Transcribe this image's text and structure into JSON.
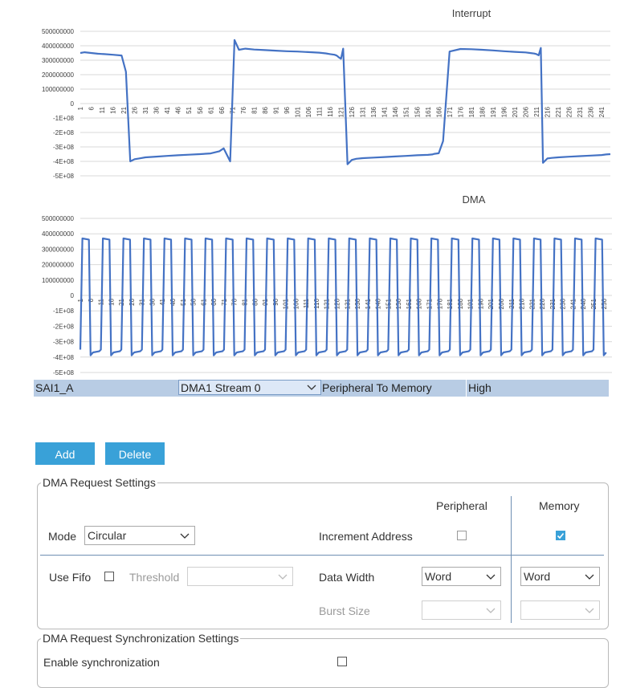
{
  "charts": {
    "interrupt": {
      "title": "Interrupt"
    },
    "dma": {
      "title": "DMA"
    }
  },
  "chart_data": [
    {
      "type": "line",
      "title": "Interrupt",
      "x_start": 1,
      "x_end": 245,
      "x_tick_step": 5,
      "y_ticks": [
        500000000,
        400000000,
        300000000,
        200000000,
        100000000,
        0,
        -100000000,
        -200000000,
        -300000000,
        -400000000,
        -500000000
      ],
      "y_tick_labels": [
        "500000000",
        "400000000",
        "300000000",
        "200000000",
        "100000000",
        "0",
        "-1E+08",
        "-2E+08",
        "-3E+08",
        "-4E+08",
        "-5E+08"
      ],
      "ylim": [
        -500000000,
        500000000
      ],
      "grid": true,
      "series": [
        {
          "values": [
            350000000,
            355000000,
            350000000,
            345000000,
            342000000,
            338000000,
            333000000,
            220000000,
            -400000000,
            -385000000,
            -380000000,
            -372000000,
            -367000000,
            -362000000,
            -358000000,
            -354000000,
            -350000000,
            -345000000,
            -330000000,
            -310000000,
            -400000000,
            440000000,
            372000000,
            380000000,
            374000000,
            370000000,
            366000000,
            362000000,
            360000000,
            356000000,
            352000000,
            347000000,
            342000000,
            338000000,
            332000000,
            320000000,
            310000000,
            380000000,
            -420000000,
            -390000000,
            -382000000,
            -378000000,
            -374000000,
            -370000000,
            -366000000,
            -362000000,
            -358000000,
            -355000000,
            -352000000,
            -348000000,
            -344000000,
            -260000000,
            360000000,
            378000000,
            376000000,
            372000000,
            368000000,
            362000000,
            358000000,
            354000000,
            350000000,
            346000000,
            342000000,
            334000000,
            385000000,
            -410000000,
            -380000000,
            -376000000,
            -372000000,
            -368000000,
            -364000000,
            -360000000,
            -356000000,
            -352000000,
            -350000000
          ],
          "x": [
            1,
            3,
            6,
            9,
            12,
            16,
            20,
            22,
            24,
            26,
            28,
            31,
            36,
            41,
            46,
            51,
            56,
            61,
            65,
            67,
            70,
            72,
            74,
            77,
            81,
            86,
            91,
            96,
            101,
            106,
            111,
            114,
            116,
            118,
            119,
            120,
            121,
            122,
            124,
            126,
            128,
            131,
            136,
            141,
            146,
            151,
            156,
            161,
            163,
            164,
            166,
            168,
            171,
            176,
            181,
            186,
            191,
            196,
            201,
            206,
            208,
            210,
            211,
            212,
            213,
            214,
            216,
            218,
            221,
            226,
            231,
            236,
            241,
            243,
            245
          ]
        }
      ]
    },
    {
      "type": "line",
      "title": "DMA",
      "x_start": 1,
      "x_end": 260,
      "x_tick_step": 5,
      "y_ticks": [
        500000000,
        400000000,
        300000000,
        200000000,
        100000000,
        0,
        -100000000,
        -200000000,
        -300000000,
        -400000000,
        -500000000
      ],
      "y_tick_labels": [
        "500000000",
        "400000000",
        "300000000",
        "200000000",
        "100000000",
        "0",
        "-1E+08",
        "-2E+08",
        "-3E+08",
        "-4E+08",
        "-5E+08"
      ],
      "ylim": [
        -500000000,
        500000000
      ],
      "grid": true,
      "series": [
        {
          "pattern": "square-wave",
          "period": 10,
          "high": 370000000,
          "low": -370000000
        }
      ]
    }
  ],
  "table": {
    "row": {
      "ip": "SAI1_A",
      "stream": "DMA1 Stream 0",
      "direction": "Peripheral To Memory",
      "priority": "High"
    }
  },
  "buttons": {
    "add": "Add",
    "delete": "Delete"
  },
  "request_settings": {
    "title": "DMA Request Settings",
    "col_peripheral": "Peripheral",
    "col_memory": "Memory",
    "mode_label": "Mode",
    "mode_value": "Circular",
    "increment_label": "Increment Address",
    "increment_peripheral": false,
    "increment_memory": true,
    "use_fifo_label": "Use Fifo",
    "use_fifo": false,
    "threshold_label": "Threshold",
    "threshold_value": "",
    "data_width_label": "Data Width",
    "data_width_peripheral": "Word",
    "data_width_memory": "Word",
    "burst_label": "Burst Size",
    "burst_peripheral": "",
    "burst_memory": ""
  },
  "sync_settings": {
    "title": "DMA Request Synchronization Settings",
    "enable_label": "Enable synchronization"
  },
  "colors": {
    "series": "#4472c4",
    "accent": "#39a1d8",
    "row": "#b8cce4",
    "grid": "#d9d9d9"
  },
  "icons": {
    "dropdown": "chevron-down-icon",
    "check": "checkmark-icon"
  }
}
